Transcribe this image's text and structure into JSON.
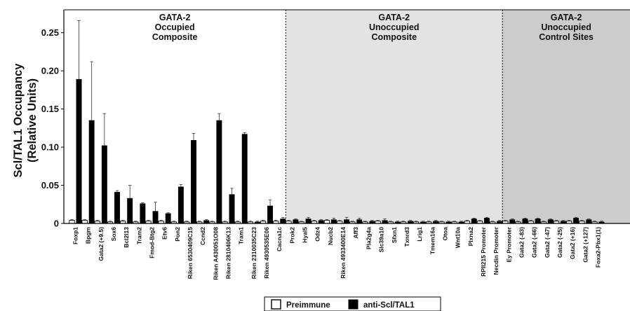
{
  "chart_data": {
    "type": "bar",
    "ylabel": [
      "Scl/TAL1 Occupancy",
      "(Relative Units)"
    ],
    "ylim": [
      0,
      0.28
    ],
    "yticks": [
      0,
      0.05,
      0.1,
      0.15,
      0.2,
      0.25
    ],
    "ytick_labels": [
      "0",
      "0.05",
      "0.10",
      "0.15",
      "0.20",
      "0.25"
    ],
    "grid": false,
    "legend_position": "bottom-center",
    "regions": [
      {
        "lines": [
          "GATA-2",
          "Occupied",
          "Composite"
        ],
        "start": 0,
        "end": 16,
        "fill": "#ffffff"
      },
      {
        "lines": [
          "GATA-2",
          "Unoccupied",
          "Composite"
        ],
        "start": 17,
        "end": 33,
        "fill": "#e3e3e3"
      },
      {
        "lines": [
          "GATA-2",
          "Unoccupied",
          "Control Sites"
        ],
        "start": 34,
        "end": 44,
        "fill": "#cccccc"
      }
    ],
    "categories": [
      "Foxp1",
      "Bpgm",
      "Gata2 (+9.5)",
      "Sox6",
      "Bcl2l13",
      "Tram2",
      "Fmod-Btg2",
      "Etv6",
      "Pon2",
      "Riken 6530409C15",
      "Ccnd2",
      "Riken A430051O08",
      "Riken 2810406K13",
      "Tram1",
      "Riken 2310035C23",
      "Riken 4930535E06",
      "Cacna1c",
      "Prok2",
      "Hyal5",
      "Odz4",
      "Nucb2",
      "Riken 4933400E14",
      "Aff3",
      "Pla2g4a",
      "Slc39a10",
      "Sfxn1",
      "Txnrd3",
      "Lrig1",
      "Tmem16a",
      "Otoa",
      "Wnt10a",
      "Plxna2",
      "RPII215 Promoter",
      "Necdin Promoter",
      "Ey Promoter",
      "Gata2 (-83)",
      "Gata2 (-66)",
      "Gata2 (-47)",
      "Gata2 (-25)",
      "Gata2 (+16)",
      "Gata2 (+127)",
      "Foxa2-Pbx1(1)"
    ],
    "series": [
      {
        "name": "Preimmune",
        "color": "#ffffff",
        "values": [
          0.004,
          0.004,
          0.003,
          0.002,
          0.003,
          0.002,
          0.003,
          0.003,
          0.002,
          0.002,
          0.002,
          0.002,
          0.002,
          0.002,
          0.002,
          0.003,
          0.003,
          0.003,
          0.002,
          0.003,
          0.004,
          0.003,
          0.002,
          0.002,
          0.003,
          0.002,
          0.002,
          0.002,
          0.002,
          0.002,
          0.002,
          0.003,
          0.003,
          0.002,
          0.003,
          0.002,
          0.003,
          0.002,
          0.003,
          0.003,
          0.003,
          0.002
        ],
        "errors": [
          0.001,
          0.001,
          0.001,
          0.001,
          0.001,
          0.001,
          0.001,
          0.001,
          0.001,
          0.001,
          0.001,
          0.001,
          0.001,
          0.001,
          0.001,
          0.001,
          0.001,
          0.001,
          0.001,
          0.001,
          0.001,
          0.001,
          0.001,
          0.001,
          0.001,
          0.001,
          0.001,
          0.001,
          0.001,
          0.001,
          0.001,
          0.001,
          0.001,
          0.001,
          0.001,
          0.001,
          0.001,
          0.001,
          0.001,
          0.001,
          0.001,
          0.001
        ]
      },
      {
        "name": "anti-Scl/TAL1",
        "color": "#000000",
        "values": [
          0.189,
          0.135,
          0.102,
          0.041,
          0.033,
          0.026,
          0.016,
          0.013,
          0.048,
          0.109,
          0.004,
          0.135,
          0.038,
          0.117,
          0.002,
          0.023,
          0.006,
          0.005,
          0.006,
          0.004,
          0.005,
          0.005,
          0.005,
          0.003,
          0.004,
          0.002,
          0.003,
          0.002,
          0.003,
          0.002,
          0.002,
          0.006,
          0.007,
          0.003,
          0.005,
          0.006,
          0.006,
          0.005,
          0.003,
          0.007,
          0.005,
          0.002
        ],
        "errors": [
          0.077,
          0.077,
          0.042,
          0.002,
          0.017,
          0.001,
          0.012,
          0.001,
          0.003,
          0.009,
          0.001,
          0.009,
          0.008,
          0.002,
          0.001,
          0.008,
          0.002,
          0.001,
          0.002,
          0.001,
          0.002,
          0.003,
          0.002,
          0.001,
          0.002,
          0.001,
          0.001,
          0.001,
          0.001,
          0.001,
          0.001,
          0.001,
          0.001,
          0.001,
          0.001,
          0.001,
          0.001,
          0.001,
          0.001,
          0.001,
          0.001,
          0.001
        ]
      }
    ],
    "legend": [
      "Preimmune",
      "anti-Scl/TAL1"
    ]
  }
}
